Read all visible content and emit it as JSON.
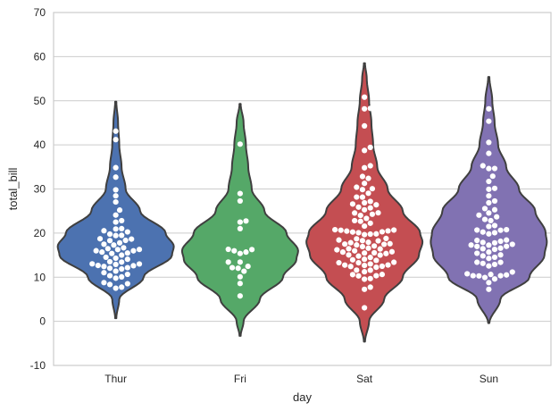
{
  "chart_data": {
    "type": "violin",
    "xlabel": "day",
    "ylabel": "total_bill",
    "categories": [
      "Thur",
      "Fri",
      "Sat",
      "Sun"
    ],
    "ylim": [
      -10,
      70
    ],
    "yticks": [
      -10,
      0,
      10,
      20,
      30,
      40,
      50,
      60,
      70
    ],
    "grid": true,
    "colors": {
      "Thur": "#4c72b0",
      "Fri": "#55a868",
      "Sat": "#c44e52",
      "Sun": "#8172b2",
      "outline": "#3f3f3f",
      "points": "#ffffff",
      "grid": "#cccccc",
      "frame": "#cccccc"
    },
    "violins": [
      {
        "category": "Thur",
        "profile": [
          [
            0.7,
            0.01
          ],
          [
            5,
            0.06
          ],
          [
            10,
            0.48
          ],
          [
            15,
            0.97
          ],
          [
            17,
            1.0
          ],
          [
            20,
            0.86
          ],
          [
            25,
            0.42
          ],
          [
            30,
            0.17
          ],
          [
            35,
            0.1
          ],
          [
            40,
            0.06
          ],
          [
            45,
            0.04
          ],
          [
            49.8,
            0.01
          ]
        ],
        "points": [
          7.51,
          7.74,
          8.35,
          8.52,
          8.77,
          9.78,
          10.07,
          10.34,
          10.65,
          11.02,
          11.38,
          11.87,
          12.03,
          12.16,
          12.43,
          12.6,
          12.66,
          12.9,
          13.0,
          13.03,
          13.42,
          13.51,
          14.07,
          14.31,
          14.52,
          15.01,
          15.38,
          15.48,
          15.69,
          15.98,
          16.0,
          16.27,
          16.29,
          16.47,
          16.66,
          17.29,
          17.47,
          17.78,
          18.29,
          18.35,
          18.64,
          18.71,
          19.44,
          19.49,
          19.77,
          20.27,
          20.53,
          20.92,
          21.01,
          22.49,
          22.82,
          24.08,
          25.21,
          27.05,
          28.44,
          29.8,
          32.68,
          34.83,
          41.19,
          43.11
        ]
      },
      {
        "category": "Fri",
        "profile": [
          [
            -3.3,
            0.01
          ],
          [
            0,
            0.06
          ],
          [
            5,
            0.34
          ],
          [
            10,
            0.74
          ],
          [
            14,
            0.97
          ],
          [
            16,
            1.0
          ],
          [
            20,
            0.8
          ],
          [
            25,
            0.42
          ],
          [
            30,
            0.2
          ],
          [
            35,
            0.14
          ],
          [
            40,
            0.1
          ],
          [
            45,
            0.06
          ],
          [
            49.3,
            0.01
          ]
        ],
        "points": [
          5.75,
          8.58,
          10.09,
          11.35,
          12.03,
          12.16,
          12.46,
          13.42,
          13.42,
          15.38,
          15.69,
          15.98,
          16.32,
          16.27,
          21.01,
          22.49,
          22.75,
          27.28,
          28.97,
          40.17
        ]
      },
      {
        "category": "Sat",
        "profile": [
          [
            -4.6,
            0.01
          ],
          [
            0,
            0.08
          ],
          [
            5,
            0.34
          ],
          [
            10,
            0.66
          ],
          [
            15,
            0.94
          ],
          [
            18,
            1.0
          ],
          [
            20,
            0.96
          ],
          [
            25,
            0.66
          ],
          [
            30,
            0.4
          ],
          [
            35,
            0.22
          ],
          [
            40,
            0.15
          ],
          [
            45,
            0.12
          ],
          [
            50,
            0.08
          ],
          [
            55,
            0.04
          ],
          [
            58.5,
            0.01
          ]
        ],
        "points": [
          3.07,
          7.25,
          7.74,
          9.55,
          9.68,
          10.29,
          10.33,
          10.59,
          10.63,
          11.24,
          11.59,
          11.61,
          12.26,
          12.43,
          12.48,
          12.66,
          12.74,
          12.76,
          13.0,
          13.27,
          13.28,
          13.39,
          13.81,
          13.94,
          14.07,
          14.48,
          14.78,
          15.01,
          15.04,
          15.36,
          15.48,
          15.53,
          15.69,
          15.77,
          15.98,
          16.21,
          16.4,
          16.45,
          16.58,
          16.93,
          17.07,
          17.31,
          17.46,
          17.51,
          17.59,
          17.82,
          17.92,
          18.24,
          18.28,
          18.43,
          18.69,
          18.78,
          19.65,
          19.77,
          19.82,
          20.08,
          20.23,
          20.29,
          20.45,
          20.49,
          20.65,
          20.69,
          20.76,
          21.58,
          22.23,
          22.67,
          22.82,
          23.33,
          24.01,
          24.27,
          24.55,
          24.59,
          25.28,
          25.71,
          25.89,
          26.41,
          26.59,
          26.86,
          27.18,
          28.15,
          28.17,
          29.03,
          29.85,
          30.06,
          30.4,
          31.27,
          32.4,
          32.83,
          34.81,
          35.26,
          38.73,
          39.42,
          44.3,
          48.17,
          48.27,
          50.81
        ]
      },
      {
        "category": "Sun",
        "profile": [
          [
            -0.4,
            0.01
          ],
          [
            5,
            0.2
          ],
          [
            10,
            0.7
          ],
          [
            15,
            0.96
          ],
          [
            18,
            1.0
          ],
          [
            20,
            0.98
          ],
          [
            25,
            0.8
          ],
          [
            30,
            0.52
          ],
          [
            35,
            0.3
          ],
          [
            40,
            0.16
          ],
          [
            45,
            0.1
          ],
          [
            50,
            0.06
          ],
          [
            55.4,
            0.01
          ]
        ],
        "points": [
          7.25,
          8.77,
          9.6,
          9.94,
          10.29,
          10.33,
          10.34,
          10.51,
          10.63,
          10.77,
          11.17,
          12.54,
          12.9,
          13.13,
          13.37,
          13.39,
          14.26,
          14.52,
          14.83,
          15.06,
          15.42,
          15.69,
          16.31,
          16.45,
          16.58,
          16.97,
          16.99,
          17.26,
          17.29,
          17.46,
          17.78,
          17.89,
          18.15,
          18.35,
          18.43,
          19.82,
          20.08,
          20.23,
          20.65,
          20.69,
          20.76,
          21.5,
          21.7,
          22.82,
          23.1,
          23.68,
          24.06,
          24.55,
          25.29,
          25.56,
          26.86,
          27.28,
          28.44,
          29.93,
          30.14,
          31.71,
          32.9,
          34.63,
          34.65,
          35.26,
          38.07,
          40.55,
          45.35,
          48.17
        ]
      }
    ]
  }
}
